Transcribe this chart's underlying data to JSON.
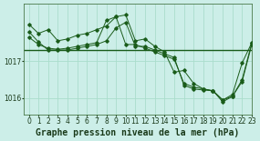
{
  "title": "Graphe pression niveau de la mer (hPa)",
  "bg_color": "#cceee8",
  "grid_color": "#aaddcc",
  "line_color": "#1a5c1a",
  "xlim": [
    -0.5,
    23
  ],
  "ylim": [
    1015.55,
    1018.55
  ],
  "yticks": [
    1016,
    1017
  ],
  "xticks": [
    0,
    1,
    2,
    3,
    4,
    5,
    6,
    7,
    8,
    9,
    10,
    11,
    12,
    13,
    14,
    15,
    16,
    17,
    18,
    19,
    20,
    21,
    22,
    23
  ],
  "series1": [
    1018.0,
    1017.75,
    1017.85,
    1017.55,
    1017.6,
    1017.7,
    1017.75,
    1017.85,
    1017.95,
    1018.2,
    1018.25,
    1017.55,
    1017.6,
    1017.4,
    1017.25,
    1016.7,
    1016.75,
    1016.4,
    1016.25,
    1016.2,
    1015.95,
    1016.1,
    1016.95,
    1017.5
  ],
  "series2": [
    1017.65,
    1017.45,
    1017.35,
    1017.32,
    1017.35,
    1017.4,
    1017.45,
    1017.5,
    1018.1,
    1018.2,
    1017.45,
    1017.45,
    1017.35,
    1017.25,
    1017.15,
    1017.05,
    1016.4,
    1016.3,
    1016.25,
    1016.2,
    1015.95,
    1016.05,
    1016.5,
    1017.5
  ],
  "series3": [
    1017.8,
    1017.52,
    1017.3,
    1017.3,
    1017.3,
    1017.35,
    1017.4,
    1017.45,
    1017.55,
    1017.9,
    1018.05,
    1017.4,
    1017.4,
    1017.3,
    1017.2,
    1017.1,
    1016.35,
    1016.25,
    1016.22,
    1016.2,
    1015.9,
    1016.05,
    1016.45,
    1017.45
  ],
  "hline_y": 1017.3,
  "tick_fontsize": 5.5,
  "label_fontsize": 7.0
}
